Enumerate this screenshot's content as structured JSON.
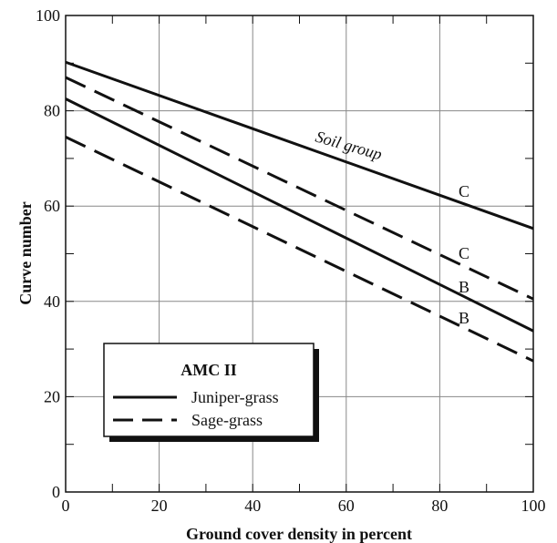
{
  "chart_data": {
    "type": "line",
    "xlabel": "Ground cover density in percent",
    "ylabel": "Curve number",
    "xlim": [
      0,
      100
    ],
    "ylim": [
      0,
      100
    ],
    "xticks": [
      0,
      20,
      40,
      60,
      80,
      100
    ],
    "yticks": [
      0,
      20,
      40,
      60,
      80,
      100
    ],
    "grid": true,
    "series": [
      {
        "name": "Juniper-grass",
        "soil_group": "C",
        "x": [
          0,
          100
        ],
        "y": [
          90.2,
          55.3
        ]
      },
      {
        "name": "Juniper-grass",
        "soil_group": "B",
        "x": [
          0,
          100
        ],
        "y": [
          82.5,
          33.8
        ]
      },
      {
        "name": "Sage-grass",
        "soil_group": "C",
        "x": [
          0,
          100
        ],
        "y": [
          87.0,
          40.5
        ]
      },
      {
        "name": "Sage-grass",
        "soil_group": "B",
        "x": [
          0,
          100
        ],
        "y": [
          74.5,
          27.5
        ]
      }
    ],
    "annotations": [
      {
        "text": "Soil group"
      },
      {
        "text": "C"
      },
      {
        "text": "C"
      },
      {
        "text": "B"
      },
      {
        "text": "B"
      }
    ],
    "legend": {
      "title": "AMC II",
      "placement": "bottom-left",
      "entries": [
        {
          "label": "Juniper-grass",
          "style": "solid"
        },
        {
          "label": "Sage-grass",
          "style": "dashed"
        }
      ]
    }
  }
}
